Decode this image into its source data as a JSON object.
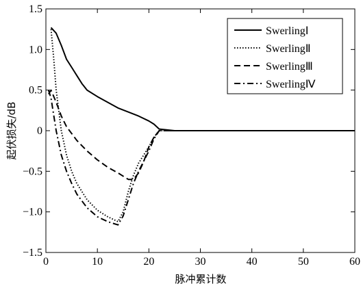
{
  "chart_data": {
    "type": "line",
    "xlabel": "脉冲累计数",
    "ylabel": "起伏损失/dB",
    "xlim": [
      0,
      60
    ],
    "ylim": [
      -1.5,
      1.5
    ],
    "xticks": [
      0,
      10,
      20,
      30,
      40,
      50,
      60
    ],
    "yticks": [
      1.5,
      1.0,
      0.5,
      0,
      -0.5,
      -1.0,
      -1.5
    ],
    "ytick_labels": [
      "1.5",
      "1.0",
      "0.5",
      "0",
      "−0.5",
      "−1.0",
      "−1.5"
    ],
    "grid": false,
    "legend_position": "top-right",
    "series": [
      {
        "name": "SwerlingⅠ",
        "style": "solid",
        "x": [
          1,
          2,
          3,
          4,
          5,
          6,
          7,
          8,
          10,
          12,
          14,
          16,
          18,
          20,
          21,
          22,
          25,
          30,
          40,
          50,
          60
        ],
        "y": [
          1.27,
          1.2,
          1.05,
          0.88,
          0.78,
          0.68,
          0.58,
          0.5,
          0.42,
          0.35,
          0.28,
          0.23,
          0.18,
          0.12,
          0.08,
          0.02,
          0,
          0,
          0,
          0,
          0
        ]
      },
      {
        "name": "SwerlingⅡ",
        "style": "dotted",
        "x": [
          1,
          1.5,
          2,
          3,
          4,
          5,
          6,
          8,
          10,
          12,
          13,
          14,
          15,
          16,
          17,
          18,
          20,
          21,
          22,
          25,
          30,
          40,
          50,
          60
        ],
        "y": [
          1.25,
          0.9,
          0.5,
          0,
          -0.3,
          -0.5,
          -0.65,
          -0.85,
          -0.98,
          -1.06,
          -1.09,
          -1.12,
          -1.0,
          -0.75,
          -0.55,
          -0.4,
          -0.2,
          -0.08,
          0,
          0,
          0,
          0,
          0,
          0
        ]
      },
      {
        "name": "SwerlingⅢ",
        "style": "dashed",
        "x": [
          0.5,
          1,
          2,
          3,
          4,
          6,
          8,
          10,
          12,
          14,
          16,
          17,
          18,
          19,
          20,
          21,
          22,
          25,
          30,
          40,
          50,
          60
        ],
        "y": [
          0.45,
          0.5,
          0.35,
          0.18,
          0.05,
          -0.12,
          -0.25,
          -0.36,
          -0.45,
          -0.52,
          -0.6,
          -0.6,
          -0.52,
          -0.38,
          -0.2,
          -0.08,
          0,
          0,
          0,
          0,
          0,
          0
        ]
      },
      {
        "name": "SwerlingⅣ",
        "style": "dash-dot",
        "x": [
          0.5,
          1,
          2,
          3,
          4,
          5,
          6,
          8,
          10,
          12,
          14,
          15,
          16,
          17,
          18,
          20,
          21,
          22,
          25,
          30,
          40,
          50,
          60
        ],
        "y": [
          0.5,
          0.4,
          0.0,
          -0.3,
          -0.5,
          -0.65,
          -0.78,
          -0.95,
          -1.06,
          -1.12,
          -1.16,
          -1.05,
          -0.85,
          -0.65,
          -0.5,
          -0.25,
          -0.1,
          0,
          0,
          0,
          0,
          0,
          0
        ]
      }
    ]
  }
}
